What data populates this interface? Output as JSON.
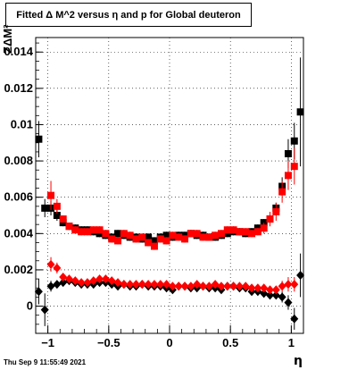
{
  "chart_data": {
    "type": "scatter",
    "title": "Fitted Δ M^2 versus η and p for Global deuteron",
    "xlabel": "η",
    "ylabel": "ZΔM²",
    "xlim": [
      -1.1,
      1.1
    ],
    "ylim": [
      -0.0015,
      0.0148
    ],
    "xticks": [
      -1,
      -0.5,
      0,
      0.5,
      1
    ],
    "xtick_labels": [
      "−1",
      "−0.5",
      "0",
      "0.5",
      "1"
    ],
    "yticks": [
      0,
      0.002,
      0.004,
      0.006,
      0.008,
      0.01,
      0.012,
      0.014
    ],
    "ytick_labels": [
      "0",
      "0.002",
      "0.004",
      "0.006",
      "0.008",
      "0.01",
      "0.012",
      "0.014"
    ],
    "grid": true,
    "colors": {
      "black": "#000000",
      "red": "#ff0000"
    },
    "x": [
      -1.075,
      -1.025,
      -0.975,
      -0.925,
      -0.875,
      -0.825,
      -0.775,
      -0.725,
      -0.675,
      -0.625,
      -0.575,
      -0.525,
      -0.475,
      -0.425,
      -0.375,
      -0.325,
      -0.275,
      -0.225,
      -0.175,
      -0.125,
      -0.075,
      -0.025,
      0.025,
      0.075,
      0.125,
      0.175,
      0.225,
      0.275,
      0.325,
      0.375,
      0.425,
      0.475,
      0.525,
      0.575,
      0.625,
      0.675,
      0.725,
      0.775,
      0.825,
      0.875,
      0.925,
      0.975,
      1.025,
      1.075
    ],
    "series": [
      {
        "marker": "square",
        "color": "black",
        "values": [
          0.0092,
          0.0054,
          0.0054,
          0.005,
          0.0046,
          0.0044,
          0.0043,
          0.0042,
          0.0042,
          0.0041,
          0.004,
          0.0039,
          0.0038,
          0.004,
          0.0039,
          0.0038,
          0.0038,
          0.0037,
          0.0038,
          0.0036,
          0.0038,
          0.0039,
          0.0038,
          0.0039,
          0.0039,
          0.004,
          0.0039,
          0.0039,
          0.0038,
          0.0038,
          0.0039,
          0.004,
          0.0041,
          0.0041,
          0.004,
          0.0041,
          0.0043,
          0.0046,
          0.0048,
          0.0054,
          0.0066,
          0.0084,
          0.0091,
          0.0107
        ],
        "errors": [
          0.001,
          0.0005,
          0.0004,
          0.0003,
          0.0002,
          0.0002,
          0.0002,
          0.0002,
          0.0002,
          0.0002,
          0.0002,
          0.0002,
          0.0002,
          0.0002,
          0.0002,
          0.0002,
          0.0002,
          0.0002,
          0.0002,
          0.0002,
          0.0002,
          0.0002,
          0.0002,
          0.0002,
          0.0002,
          0.0002,
          0.0002,
          0.0002,
          0.0002,
          0.0002,
          0.0002,
          0.0002,
          0.0002,
          0.0002,
          0.0002,
          0.0002,
          0.0002,
          0.0002,
          0.0003,
          0.0003,
          0.0005,
          0.0008,
          0.001,
          0.003
        ]
      },
      {
        "marker": "square",
        "color": "red",
        "values": [
          null,
          null,
          0.0061,
          0.0055,
          0.0048,
          0.0044,
          0.0042,
          0.0041,
          0.0041,
          0.0042,
          0.0042,
          0.004,
          0.0037,
          0.0036,
          0.004,
          0.0039,
          0.0037,
          0.0038,
          0.0035,
          0.0033,
          0.0037,
          0.0036,
          0.0039,
          0.0038,
          0.0037,
          0.004,
          0.004,
          0.0038,
          0.0038,
          0.0039,
          0.004,
          0.0042,
          0.0042,
          0.0041,
          0.0041,
          0.004,
          0.0041,
          0.0043,
          0.0048,
          0.0052,
          0.0063,
          0.0072,
          0.0077,
          null
        ],
        "errors": [
          null,
          null,
          0.0008,
          0.0004,
          0.0002,
          0.0002,
          0.0002,
          0.0002,
          0.0002,
          0.0002,
          0.0002,
          0.0002,
          0.0002,
          0.0002,
          0.0002,
          0.0002,
          0.0002,
          0.0002,
          0.0002,
          0.0002,
          0.0002,
          0.0002,
          0.0002,
          0.0002,
          0.0002,
          0.0002,
          0.0002,
          0.0002,
          0.0002,
          0.0002,
          0.0002,
          0.0002,
          0.0002,
          0.0002,
          0.0002,
          0.0002,
          0.0002,
          0.0003,
          0.0004,
          0.0005,
          0.0006,
          0.0008,
          0.001,
          null
        ]
      },
      {
        "marker": "diamond",
        "color": "black",
        "values": [
          0.0008,
          -0.0002,
          0.0011,
          0.0012,
          0.0013,
          0.0014,
          0.0013,
          0.0012,
          0.0012,
          0.0012,
          0.0013,
          0.0013,
          0.0012,
          0.0011,
          0.0012,
          0.0011,
          0.0011,
          0.0012,
          0.0011,
          0.0011,
          0.0011,
          0.001,
          0.0009,
          0.0011,
          0.0011,
          0.001,
          0.001,
          0.0011,
          0.001,
          0.001,
          0.0009,
          0.0011,
          0.0011,
          0.001,
          0.001,
          0.0008,
          0.0008,
          0.0007,
          0.0006,
          0.0006,
          0.0005,
          0.0002,
          -0.0007,
          0.0017
        ],
        "errors": [
          0.0007,
          0.0009,
          0.0003,
          0.0002,
          0.0002,
          0.0001,
          0.0001,
          0.0001,
          0.0001,
          0.0001,
          0.0001,
          0.0001,
          0.0001,
          0.0001,
          0.0001,
          0.0001,
          0.0001,
          0.0001,
          0.0001,
          0.0001,
          0.0001,
          0.0001,
          0.0001,
          0.0001,
          0.0001,
          0.0001,
          0.0001,
          0.0001,
          0.0001,
          0.0001,
          0.0001,
          0.0001,
          0.0001,
          0.0001,
          0.0001,
          0.0001,
          0.0001,
          0.0002,
          0.0002,
          0.0002,
          0.0003,
          0.0004,
          0.0006,
          0.0012
        ]
      },
      {
        "marker": "diamond",
        "color": "red",
        "values": [
          null,
          null,
          0.0023,
          0.0021,
          0.0016,
          0.0015,
          0.0014,
          0.0013,
          0.0013,
          0.0014,
          0.0015,
          0.0015,
          0.0014,
          0.0013,
          0.0012,
          0.0012,
          0.0012,
          0.0012,
          0.0012,
          0.0012,
          0.0012,
          0.0012,
          0.0011,
          0.0011,
          0.0011,
          0.0011,
          0.0012,
          0.0011,
          0.0011,
          0.0012,
          0.0011,
          0.0011,
          0.0011,
          0.0011,
          0.0011,
          0.001,
          0.001,
          0.001,
          0.0009,
          0.0009,
          0.0011,
          0.0012,
          0.0012,
          null
        ],
        "errors": [
          null,
          null,
          0.0004,
          0.0003,
          0.0002,
          0.0001,
          0.0001,
          0.0001,
          0.0001,
          0.0001,
          0.0001,
          0.0001,
          0.0001,
          0.0001,
          0.0001,
          0.0001,
          0.0001,
          0.0001,
          0.0001,
          0.0001,
          0.0001,
          0.0001,
          0.0001,
          0.0001,
          0.0001,
          0.0001,
          0.0001,
          0.0001,
          0.0001,
          0.0001,
          0.0001,
          0.0001,
          0.0001,
          0.0001,
          0.0001,
          0.0001,
          0.0001,
          0.0002,
          0.0002,
          0.0002,
          0.0003,
          0.0004,
          0.0004,
          null
        ]
      }
    ]
  },
  "footer": {
    "timestamp": "Thu Sep  9 11:55:49 2021"
  }
}
